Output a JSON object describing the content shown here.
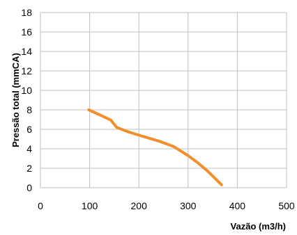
{
  "chart_data": {
    "type": "line",
    "title": "",
    "xlabel": "Vazão (m3/h)",
    "ylabel": "Pressão total (mmCA)",
    "xlim": [
      0,
      500
    ],
    "ylim": [
      0,
      18
    ],
    "x_ticks": [
      0,
      100,
      200,
      300,
      400,
      500
    ],
    "y_ticks": [
      0,
      2,
      4,
      6,
      8,
      10,
      12,
      14,
      16,
      18
    ],
    "grid": true,
    "legend": "none",
    "series": [
      {
        "color": "#f28e2b",
        "x": [
          98,
          120,
          143,
          155,
          175,
          200,
          240,
          270,
          300,
          320,
          340,
          355,
          368
        ],
        "y": [
          8.0,
          7.5,
          6.95,
          6.2,
          5.8,
          5.4,
          4.8,
          4.25,
          3.3,
          2.55,
          1.7,
          0.95,
          0.3
        ]
      }
    ]
  }
}
